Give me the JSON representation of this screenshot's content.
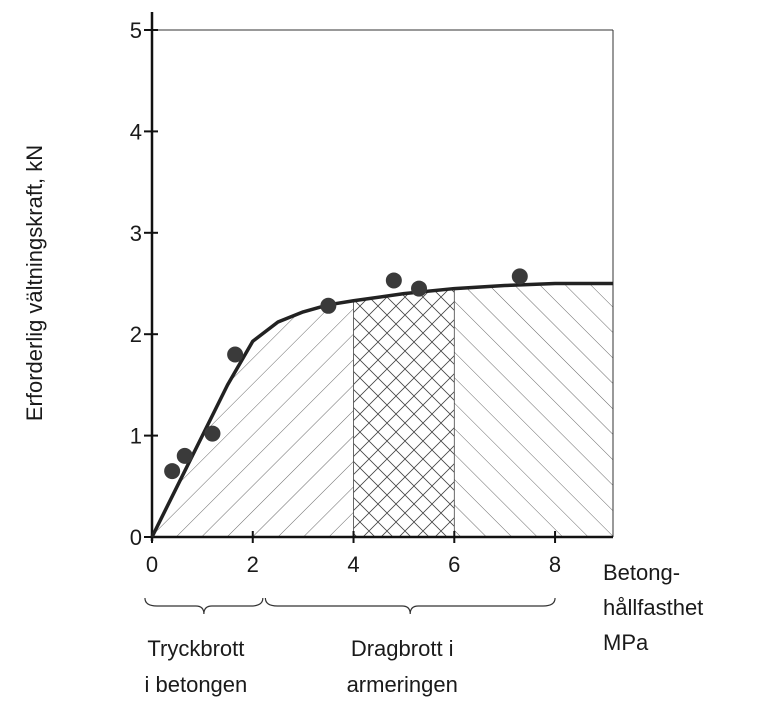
{
  "chart_data": {
    "type": "scatter",
    "y_label": "Erforderlig vältningskraft, kN",
    "x_label": [
      "Betong-",
      "hållfasthet",
      "MPa"
    ],
    "xlim": [
      0,
      9.15
    ],
    "ylim": [
      0,
      5
    ],
    "xticks": [
      0,
      2,
      4,
      6,
      8
    ],
    "yticks": [
      0,
      1,
      2,
      3,
      4,
      5
    ],
    "points": {
      "x": [
        0.4,
        0.65,
        1.2,
        1.65,
        3.5,
        4.8,
        5.3,
        7.3
      ],
      "y": [
        0.65,
        0.8,
        1.02,
        1.8,
        2.28,
        2.53,
        2.45,
        2.57
      ],
      "color": "#3a3a3a"
    },
    "curve": {
      "x": [
        0,
        0.5,
        1,
        1.5,
        2,
        2.5,
        3,
        3.5,
        4,
        5,
        6,
        7,
        8,
        9.15
      ],
      "y": [
        0,
        0.5,
        1.0,
        1.5,
        1.93,
        2.12,
        2.22,
        2.29,
        2.33,
        2.4,
        2.45,
        2.48,
        2.5,
        2.5
      ],
      "color": "#222222"
    },
    "regions": [
      {
        "x0": 0,
        "x1": 4,
        "hatch": "forward"
      },
      {
        "x0": 4,
        "x1": 6,
        "hatch": "cross"
      },
      {
        "x0": 6,
        "x1": 9.15,
        "hatch": "back"
      }
    ],
    "annotations": [
      {
        "lines": [
          "Tryckbrott",
          "i betongen"
        ],
        "x_range": [
          -0.14,
          2.2
        ]
      },
      {
        "lines": [
          "Dragbrott i",
          "armeringen"
        ],
        "x_range": [
          2.25,
          8
        ]
      }
    ]
  }
}
